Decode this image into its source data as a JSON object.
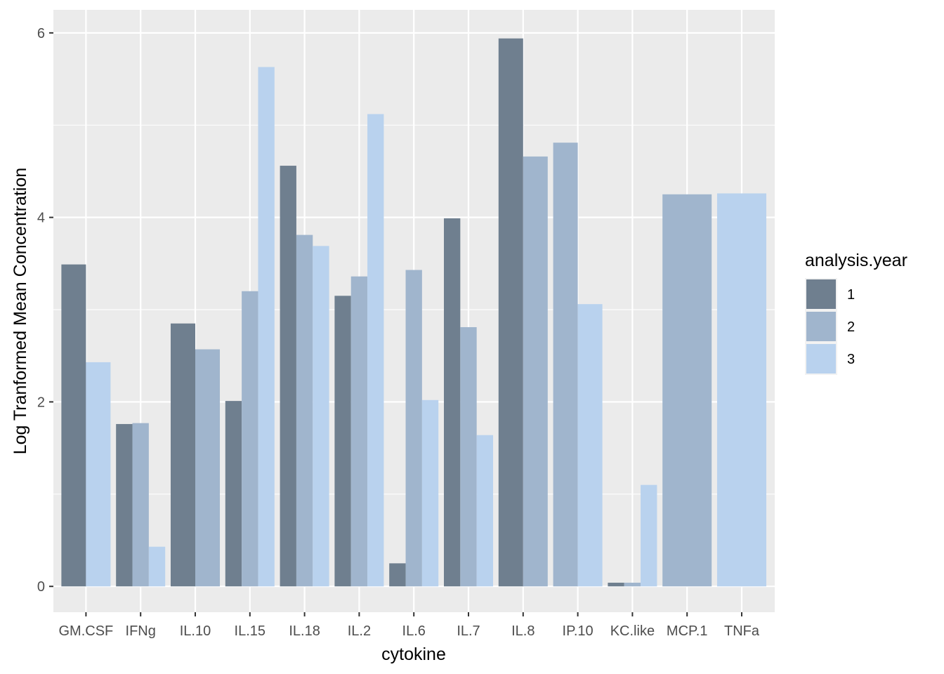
{
  "chart_data": {
    "type": "bar",
    "xlabel": "cytokine",
    "ylabel": "Log Tranformed Mean Concentration",
    "ylim": [
      -0.28,
      6.25
    ],
    "yticks": [
      0,
      2,
      4,
      6
    ],
    "grid": true,
    "legend": {
      "title": "analysis.year",
      "position": "right",
      "entries": [
        "1",
        "2",
        "3"
      ]
    },
    "categories": [
      "GM.CSF",
      "IFNg",
      "IL.10",
      "IL.15",
      "IL.18",
      "IL.2",
      "IL.6",
      "IL.7",
      "IL.8",
      "IP.10",
      "KC.like",
      "MCP.1",
      "TNFa"
    ],
    "series": [
      {
        "name": "1",
        "color": "#6F7F8F",
        "values": [
          3.49,
          1.76,
          2.85,
          2.01,
          4.56,
          3.15,
          0.25,
          3.99,
          5.94,
          null,
          0.04,
          null,
          null
        ]
      },
      {
        "name": "2",
        "color": "#A0B5CD",
        "values": [
          null,
          1.77,
          2.57,
          3.2,
          3.81,
          3.36,
          3.43,
          2.81,
          4.66,
          4.81,
          0.04,
          4.25,
          null
        ]
      },
      {
        "name": "3",
        "color": "#B9D2EE",
        "values": [
          2.43,
          0.43,
          null,
          5.63,
          3.69,
          5.12,
          2.02,
          1.64,
          null,
          3.06,
          1.1,
          null,
          4.26
        ]
      }
    ]
  }
}
